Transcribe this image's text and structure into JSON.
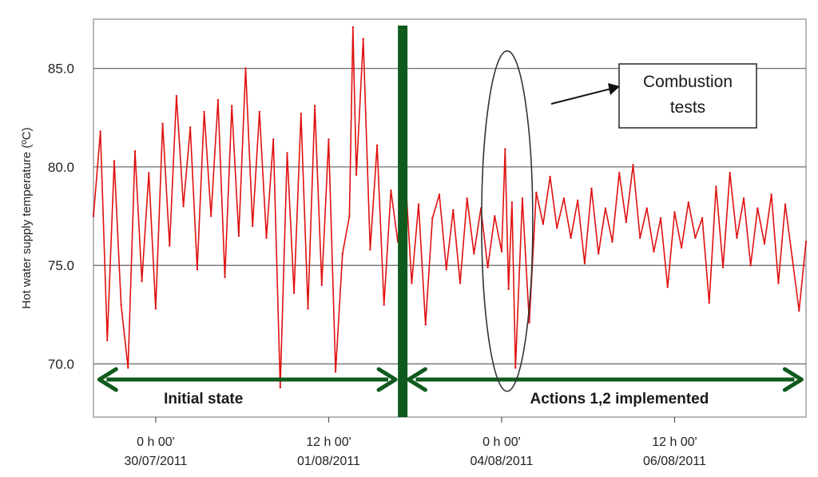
{
  "chart_data": {
    "type": "line",
    "title": "",
    "ylabel": "Hot  water  supply temperature  (ºC)",
    "xlabel": "",
    "ylim": [
      67.3,
      87.5
    ],
    "yticks": [
      "70.0",
      "75.0",
      "80.0",
      "85.0"
    ],
    "ytick_values": [
      70,
      75,
      80,
      85
    ],
    "grid": "horizontal",
    "xlim_days": [
      -0.9,
      9.4
    ],
    "xticks": [
      {
        "label_time": "0 h 00'",
        "label_date": "30/07/2011",
        "day": 0
      },
      {
        "label_time": "12 h 00'",
        "label_date": "01/08/2011",
        "day": 2.5
      },
      {
        "label_time": "0 h 00'",
        "label_date": "04/08/2011",
        "day": 5
      },
      {
        "label_time": "12 h 00'",
        "label_date": "06/08/2011",
        "day": 7.5
      }
    ],
    "series": [
      {
        "color": "#e01010",
        "points": [
          [
            -0.9,
            77.5
          ],
          [
            -0.8,
            81.8
          ],
          [
            -0.7,
            71.2
          ],
          [
            -0.6,
            80.3
          ],
          [
            -0.5,
            73.0
          ],
          [
            -0.4,
            69.8
          ],
          [
            -0.3,
            80.8
          ],
          [
            -0.2,
            74.2
          ],
          [
            -0.1,
            79.7
          ],
          [
            0.0,
            72.8
          ],
          [
            0.1,
            82.2
          ],
          [
            0.2,
            76.0
          ],
          [
            0.3,
            83.6
          ],
          [
            0.4,
            78.0
          ],
          [
            0.5,
            82.0
          ],
          [
            0.6,
            74.8
          ],
          [
            0.7,
            82.8
          ],
          [
            0.8,
            77.5
          ],
          [
            0.9,
            83.4
          ],
          [
            1.0,
            74.4
          ],
          [
            1.1,
            83.1
          ],
          [
            1.2,
            76.5
          ],
          [
            1.3,
            85.0
          ],
          [
            1.4,
            77.0
          ],
          [
            1.5,
            82.8
          ],
          [
            1.6,
            76.4
          ],
          [
            1.7,
            81.4
          ],
          [
            1.8,
            68.8
          ],
          [
            1.9,
            80.7
          ],
          [
            2.0,
            73.6
          ],
          [
            2.1,
            82.7
          ],
          [
            2.2,
            72.8
          ],
          [
            2.3,
            83.1
          ],
          [
            2.4,
            74.0
          ],
          [
            2.5,
            81.4
          ],
          [
            2.6,
            69.6
          ],
          [
            2.7,
            75.6
          ],
          [
            2.8,
            77.5
          ],
          [
            2.85,
            87.1
          ],
          [
            2.9,
            79.6
          ],
          [
            3.0,
            86.5
          ],
          [
            3.1,
            75.8
          ],
          [
            3.2,
            81.1
          ],
          [
            3.3,
            73.0
          ],
          [
            3.4,
            78.8
          ],
          [
            3.5,
            76.2
          ],
          [
            3.6,
            80.1
          ],
          [
            3.7,
            74.1
          ],
          [
            3.8,
            78.1
          ],
          [
            3.9,
            72.0
          ],
          [
            4.0,
            77.4
          ],
          [
            4.1,
            78.6
          ],
          [
            4.2,
            74.8
          ],
          [
            4.3,
            77.8
          ],
          [
            4.4,
            74.1
          ],
          [
            4.5,
            78.4
          ],
          [
            4.6,
            75.6
          ],
          [
            4.7,
            77.9
          ],
          [
            4.8,
            74.9
          ],
          [
            4.9,
            77.5
          ],
          [
            5.0,
            75.7
          ],
          [
            5.05,
            80.9
          ],
          [
            5.1,
            73.8
          ],
          [
            5.15,
            78.2
          ],
          [
            5.2,
            69.8
          ],
          [
            5.3,
            78.4
          ],
          [
            5.4,
            72.1
          ],
          [
            5.5,
            78.7
          ],
          [
            5.6,
            77.1
          ],
          [
            5.7,
            79.5
          ],
          [
            5.8,
            76.9
          ],
          [
            5.9,
            78.4
          ],
          [
            6.0,
            76.4
          ],
          [
            6.1,
            78.3
          ],
          [
            6.2,
            75.1
          ],
          [
            6.3,
            78.9
          ],
          [
            6.4,
            75.6
          ],
          [
            6.5,
            77.9
          ],
          [
            6.6,
            76.2
          ],
          [
            6.7,
            79.7
          ],
          [
            6.8,
            77.2
          ],
          [
            6.9,
            80.1
          ],
          [
            7.0,
            76.4
          ],
          [
            7.1,
            77.9
          ],
          [
            7.2,
            75.7
          ],
          [
            7.3,
            77.4
          ],
          [
            7.4,
            73.9
          ],
          [
            7.5,
            77.7
          ],
          [
            7.6,
            75.9
          ],
          [
            7.7,
            78.2
          ],
          [
            7.8,
            76.4
          ],
          [
            7.9,
            77.4
          ],
          [
            8.0,
            73.1
          ],
          [
            8.1,
            79.0
          ],
          [
            8.2,
            74.9
          ],
          [
            8.3,
            79.7
          ],
          [
            8.4,
            76.4
          ],
          [
            8.5,
            78.4
          ],
          [
            8.6,
            75.0
          ],
          [
            8.7,
            77.9
          ],
          [
            8.8,
            76.1
          ],
          [
            8.9,
            78.6
          ],
          [
            9.0,
            74.1
          ],
          [
            9.1,
            78.1
          ],
          [
            9.2,
            75.4
          ],
          [
            9.3,
            72.7
          ],
          [
            9.4,
            76.2
          ]
        ]
      }
    ],
    "divider_day": 3.57,
    "segments": [
      {
        "label": "Initial state",
        "from_day": -0.85,
        "to_day": 3.5
      },
      {
        "label": "Actions 1,2 implemented",
        "from_day": 3.62,
        "to_day": 9.37
      }
    ],
    "annotation": {
      "text_line1": "Combustion",
      "text_line2": "tests",
      "day": 5.08,
      "temp": 77.25
    }
  }
}
